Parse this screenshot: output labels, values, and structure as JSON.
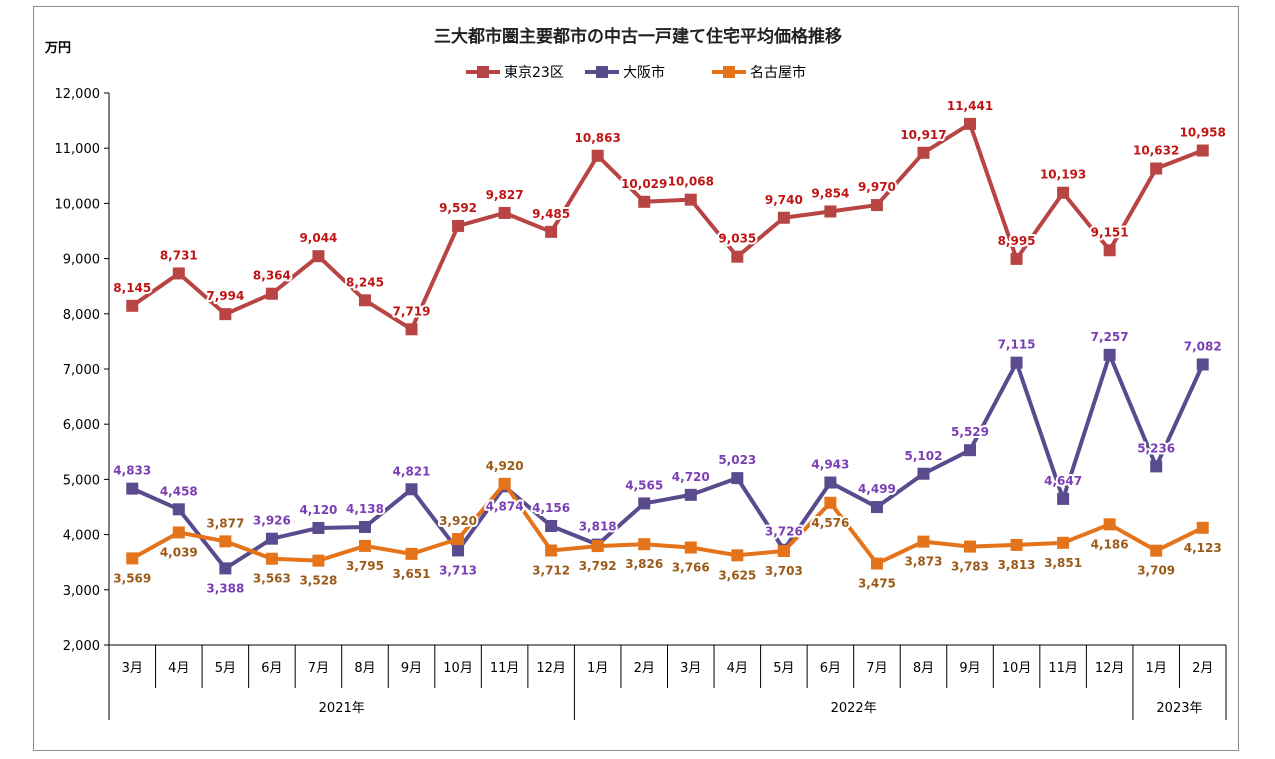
{
  "chart_data": {
    "type": "line",
    "title": "三大都市圏主要都市の中古一戸建て住宅平均価格推移",
    "ylabel": "万円",
    "ylim": [
      2000,
      12000
    ],
    "yticks": [
      "2,000",
      "3,000",
      "4,000",
      "5,000",
      "6,000",
      "7,000",
      "8,000",
      "9,000",
      "10,000",
      "11,000",
      "12,000"
    ],
    "ytick_values": [
      2000,
      3000,
      4000,
      5000,
      6000,
      7000,
      8000,
      9000,
      10000,
      11000,
      12000
    ],
    "categories": [
      "3月",
      "4月",
      "5月",
      "6月",
      "7月",
      "8月",
      "9月",
      "10月",
      "11月",
      "12月",
      "1月",
      "2月",
      "3月",
      "4月",
      "5月",
      "6月",
      "7月",
      "8月",
      "9月",
      "10月",
      "11月",
      "12月",
      "1月",
      "2月"
    ],
    "year_groups": [
      {
        "label": "2021年",
        "start": 0,
        "end": 9
      },
      {
        "label": "2022年",
        "start": 10,
        "end": 21
      },
      {
        "label": "2023年",
        "start": 22,
        "end": 23
      }
    ],
    "series": [
      {
        "name": "東京23区",
        "color": "#b84444",
        "label_color": "#c01515",
        "values": [
          8145,
          8731,
          7994,
          8364,
          9044,
          8245,
          7719,
          9592,
          9827,
          9485,
          10863,
          10029,
          10068,
          9035,
          9740,
          9854,
          9970,
          10917,
          11441,
          8995,
          10193,
          9151,
          10632,
          10958
        ],
        "labels": [
          "8,145",
          "8,731",
          "7,994",
          "8,364",
          "9,044",
          "8,245",
          "7,719",
          "9,592",
          "9,827",
          "9,485",
          "10,863",
          "10,029",
          "10,068",
          "9,035",
          "9,740",
          "9,854",
          "9,970",
          "10,917",
          "11,441",
          "8,995",
          "10,193",
          "9,151",
          "10,632",
          "10,958"
        ],
        "label_pos": [
          "above",
          "above",
          "above",
          "above",
          "above",
          "above",
          "above",
          "above",
          "above",
          "above",
          "above",
          "above",
          "above",
          "above",
          "above",
          "above",
          "above",
          "above",
          "above",
          "above",
          "above",
          "above",
          "above",
          "above"
        ]
      },
      {
        "name": "大阪市",
        "color": "#5a4a8e",
        "label_color": "#7a3fb4",
        "values": [
          4833,
          4458,
          3388,
          3926,
          4120,
          4138,
          4821,
          3713,
          4874,
          4156,
          3818,
          4565,
          4720,
          5023,
          3726,
          4943,
          4499,
          5102,
          5529,
          7115,
          4647,
          7257,
          5236,
          7082
        ],
        "labels": [
          "4,833",
          "4,458",
          "3,388",
          "3,926",
          "4,120",
          "4,138",
          "4,821",
          "3,713",
          "4,874",
          "4,156",
          "3,818",
          "4,565",
          "4,720",
          "5,023",
          "3,726",
          "4,943",
          "4,499",
          "5,102",
          "5,529",
          "7,115",
          "4,647",
          "7,257",
          "5,236",
          "7,082"
        ],
        "label_pos": [
          "above",
          "above",
          "below",
          "above",
          "above",
          "above",
          "above",
          "below",
          "below",
          "above",
          "above",
          "above",
          "above",
          "above",
          "above",
          "above",
          "above",
          "above",
          "above",
          "above",
          "above",
          "above",
          "above",
          "above"
        ]
      },
      {
        "name": "名古屋市",
        "color": "#e4731a",
        "label_color": "#9c5a18",
        "values": [
          3569,
          4039,
          3877,
          3563,
          3528,
          3795,
          3651,
          3920,
          4920,
          3712,
          3792,
          3826,
          3766,
          3625,
          3703,
          4576,
          3475,
          3873,
          3783,
          3813,
          3851,
          4186,
          3709,
          4123
        ],
        "labels": [
          "3,569",
          "4,039",
          "3,877",
          "3,563",
          "3,528",
          "3,795",
          "3,651",
          "3,920",
          "4,920",
          "3,712",
          "3,792",
          "3,826",
          "3,766",
          "3,625",
          "3,703",
          "4,576",
          "3,475",
          "3,873",
          "3,783",
          "3,813",
          "3,851",
          "4,186",
          "3,709",
          "4,123"
        ],
        "label_pos": [
          "below",
          "below",
          "above",
          "below",
          "below",
          "below",
          "below",
          "above",
          "above",
          "below",
          "below",
          "below",
          "below",
          "below",
          "below",
          "below",
          "below",
          "below",
          "below",
          "below",
          "below",
          "below",
          "below",
          "below"
        ]
      }
    ],
    "legend_position": "top-center"
  }
}
